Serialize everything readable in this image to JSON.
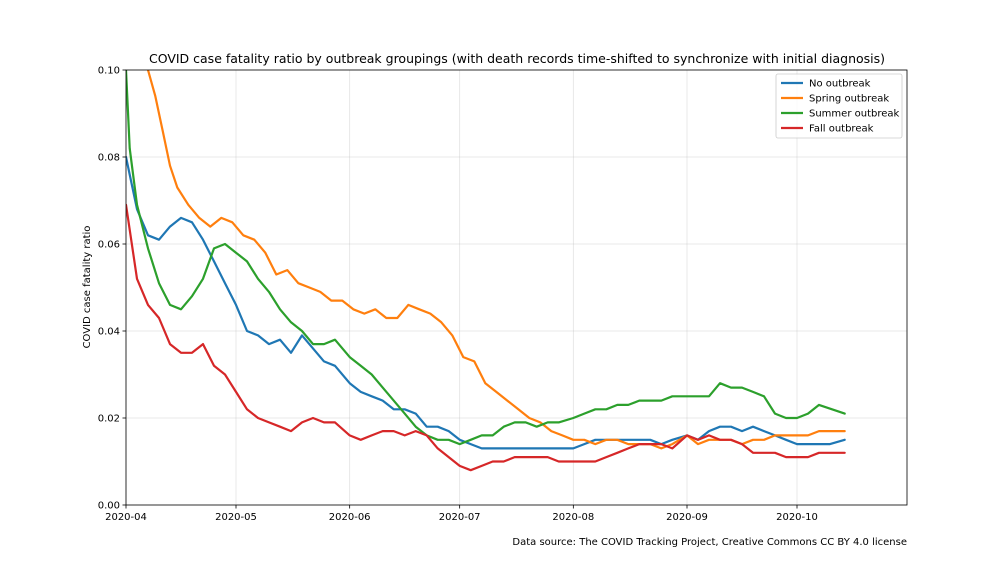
{
  "chart_data": {
    "type": "line",
    "title": "COVID case fatality ratio by outbreak groupings (with death records time-shifted to synchronize with initial diagnosis)",
    "xlabel": "",
    "ylabel": "COVID case fatality ratio",
    "xlim": [
      "2020-04-01",
      "2020-10-31"
    ],
    "ylim": [
      0.0,
      0.1
    ],
    "x_ticks": [
      "2020-04",
      "2020-05",
      "2020-06",
      "2020-07",
      "2020-08",
      "2020-09",
      "2020-10"
    ],
    "y_ticks": [
      "0.00",
      "0.02",
      "0.04",
      "0.06",
      "0.08",
      "0.10"
    ],
    "grid": true,
    "legend_position": "upper right",
    "series": [
      {
        "name": "No outbreak",
        "color": "#1f77b4",
        "x": [
          "2020-04-01",
          "2020-04-04",
          "2020-04-07",
          "2020-04-10",
          "2020-04-13",
          "2020-04-16",
          "2020-04-19",
          "2020-04-22",
          "2020-04-25",
          "2020-04-28",
          "2020-05-01",
          "2020-05-04",
          "2020-05-07",
          "2020-05-10",
          "2020-05-13",
          "2020-05-16",
          "2020-05-19",
          "2020-05-22",
          "2020-05-25",
          "2020-05-28",
          "2020-06-01",
          "2020-06-04",
          "2020-06-07",
          "2020-06-10",
          "2020-06-13",
          "2020-06-16",
          "2020-06-19",
          "2020-06-22",
          "2020-06-25",
          "2020-06-28",
          "2020-07-01",
          "2020-07-04",
          "2020-07-07",
          "2020-07-10",
          "2020-07-13",
          "2020-07-16",
          "2020-07-19",
          "2020-07-22",
          "2020-07-25",
          "2020-07-28",
          "2020-08-01",
          "2020-08-04",
          "2020-08-07",
          "2020-08-10",
          "2020-08-13",
          "2020-08-16",
          "2020-08-19",
          "2020-08-22",
          "2020-08-25",
          "2020-08-28",
          "2020-09-01",
          "2020-09-04",
          "2020-09-07",
          "2020-09-10",
          "2020-09-13",
          "2020-09-16",
          "2020-09-19",
          "2020-09-22",
          "2020-09-25",
          "2020-09-28",
          "2020-10-01",
          "2020-10-04",
          "2020-10-07",
          "2020-10-10",
          "2020-10-14"
        ],
        "y": [
          0.08,
          0.068,
          0.062,
          0.061,
          0.064,
          0.066,
          0.065,
          0.061,
          0.056,
          0.051,
          0.046,
          0.04,
          0.039,
          0.037,
          0.038,
          0.035,
          0.039,
          0.036,
          0.033,
          0.032,
          0.028,
          0.026,
          0.025,
          0.024,
          0.022,
          0.022,
          0.021,
          0.018,
          0.018,
          0.017,
          0.015,
          0.014,
          0.013,
          0.013,
          0.013,
          0.013,
          0.013,
          0.013,
          0.013,
          0.013,
          0.013,
          0.014,
          0.015,
          0.015,
          0.015,
          0.015,
          0.015,
          0.015,
          0.014,
          0.015,
          0.016,
          0.015,
          0.017,
          0.018,
          0.018,
          0.017,
          0.018,
          0.017,
          0.016,
          0.015,
          0.014,
          0.014,
          0.014,
          0.014,
          0.015
        ]
      },
      {
        "name": "Spring outbreak",
        "color": "#ff7f0e",
        "x": [
          "2020-04-07",
          "2020-04-09",
          "2020-04-11",
          "2020-04-13",
          "2020-04-15",
          "2020-04-18",
          "2020-04-21",
          "2020-04-24",
          "2020-04-27",
          "2020-04-30",
          "2020-05-03",
          "2020-05-06",
          "2020-05-09",
          "2020-05-12",
          "2020-05-15",
          "2020-05-18",
          "2020-05-21",
          "2020-05-24",
          "2020-05-27",
          "2020-05-30",
          "2020-06-02",
          "2020-06-05",
          "2020-06-08",
          "2020-06-11",
          "2020-06-14",
          "2020-06-17",
          "2020-06-20",
          "2020-06-23",
          "2020-06-26",
          "2020-06-29",
          "2020-07-02",
          "2020-07-05",
          "2020-07-08",
          "2020-07-11",
          "2020-07-14",
          "2020-07-17",
          "2020-07-20",
          "2020-07-23",
          "2020-07-26",
          "2020-07-29",
          "2020-08-01",
          "2020-08-04",
          "2020-08-07",
          "2020-08-10",
          "2020-08-13",
          "2020-08-16",
          "2020-08-19",
          "2020-08-22",
          "2020-08-25",
          "2020-08-28",
          "2020-09-01",
          "2020-09-04",
          "2020-09-07",
          "2020-09-10",
          "2020-09-13",
          "2020-09-16",
          "2020-09-19",
          "2020-09-22",
          "2020-09-25",
          "2020-09-28",
          "2020-10-01",
          "2020-10-04",
          "2020-10-07",
          "2020-10-10",
          "2020-10-14"
        ],
        "y": [
          0.1,
          0.094,
          0.086,
          0.078,
          0.073,
          0.069,
          0.066,
          0.064,
          0.066,
          0.065,
          0.062,
          0.061,
          0.058,
          0.053,
          0.054,
          0.051,
          0.05,
          0.049,
          0.047,
          0.047,
          0.045,
          0.044,
          0.045,
          0.043,
          0.043,
          0.046,
          0.045,
          0.044,
          0.042,
          0.039,
          0.034,
          0.033,
          0.028,
          0.026,
          0.024,
          0.022,
          0.02,
          0.019,
          0.017,
          0.016,
          0.015,
          0.015,
          0.014,
          0.015,
          0.015,
          0.014,
          0.014,
          0.014,
          0.013,
          0.014,
          0.016,
          0.014,
          0.015,
          0.015,
          0.015,
          0.014,
          0.015,
          0.015,
          0.016,
          0.016,
          0.016,
          0.016,
          0.017,
          0.017,
          0.017
        ]
      },
      {
        "name": "Summer outbreak",
        "color": "#2ca02c",
        "x": [
          "2020-04-01",
          "2020-04-02",
          "2020-04-04",
          "2020-04-07",
          "2020-04-10",
          "2020-04-13",
          "2020-04-16",
          "2020-04-19",
          "2020-04-22",
          "2020-04-25",
          "2020-04-28",
          "2020-05-01",
          "2020-05-04",
          "2020-05-07",
          "2020-05-10",
          "2020-05-13",
          "2020-05-16",
          "2020-05-19",
          "2020-05-22",
          "2020-05-25",
          "2020-05-28",
          "2020-06-01",
          "2020-06-04",
          "2020-06-07",
          "2020-06-10",
          "2020-06-13",
          "2020-06-16",
          "2020-06-19",
          "2020-06-22",
          "2020-06-25",
          "2020-06-28",
          "2020-07-01",
          "2020-07-04",
          "2020-07-07",
          "2020-07-10",
          "2020-07-13",
          "2020-07-16",
          "2020-07-19",
          "2020-07-22",
          "2020-07-25",
          "2020-07-28",
          "2020-08-01",
          "2020-08-04",
          "2020-08-07",
          "2020-08-10",
          "2020-08-13",
          "2020-08-16",
          "2020-08-19",
          "2020-08-22",
          "2020-08-25",
          "2020-08-28",
          "2020-09-01",
          "2020-09-04",
          "2020-09-07",
          "2020-09-10",
          "2020-09-13",
          "2020-09-16",
          "2020-09-19",
          "2020-09-22",
          "2020-09-25",
          "2020-09-28",
          "2020-10-01",
          "2020-10-04",
          "2020-10-07",
          "2020-10-14"
        ],
        "y": [
          0.1,
          0.082,
          0.069,
          0.059,
          0.051,
          0.046,
          0.045,
          0.048,
          0.052,
          0.059,
          0.06,
          0.058,
          0.056,
          0.052,
          0.049,
          0.045,
          0.042,
          0.04,
          0.037,
          0.037,
          0.038,
          0.034,
          0.032,
          0.03,
          0.027,
          0.024,
          0.021,
          0.018,
          0.016,
          0.015,
          0.015,
          0.014,
          0.015,
          0.016,
          0.016,
          0.018,
          0.019,
          0.019,
          0.018,
          0.019,
          0.019,
          0.02,
          0.021,
          0.022,
          0.022,
          0.023,
          0.023,
          0.024,
          0.024,
          0.024,
          0.025,
          0.025,
          0.025,
          0.025,
          0.028,
          0.027,
          0.027,
          0.026,
          0.025,
          0.021,
          0.02,
          0.02,
          0.021,
          0.023,
          0.021
        ]
      },
      {
        "name": "Fall outbreak",
        "color": "#d62728",
        "x": [
          "2020-04-01",
          "2020-04-04",
          "2020-04-07",
          "2020-04-10",
          "2020-04-13",
          "2020-04-16",
          "2020-04-19",
          "2020-04-22",
          "2020-04-25",
          "2020-04-28",
          "2020-05-01",
          "2020-05-04",
          "2020-05-07",
          "2020-05-10",
          "2020-05-13",
          "2020-05-16",
          "2020-05-19",
          "2020-05-22",
          "2020-05-25",
          "2020-05-28",
          "2020-06-01",
          "2020-06-04",
          "2020-06-07",
          "2020-06-10",
          "2020-06-13",
          "2020-06-16",
          "2020-06-19",
          "2020-06-22",
          "2020-06-25",
          "2020-06-28",
          "2020-07-01",
          "2020-07-04",
          "2020-07-07",
          "2020-07-10",
          "2020-07-13",
          "2020-07-16",
          "2020-07-19",
          "2020-07-22",
          "2020-07-25",
          "2020-07-28",
          "2020-08-01",
          "2020-08-04",
          "2020-08-07",
          "2020-08-10",
          "2020-08-13",
          "2020-08-16",
          "2020-08-19",
          "2020-08-22",
          "2020-08-25",
          "2020-08-28",
          "2020-09-01",
          "2020-09-04",
          "2020-09-07",
          "2020-09-10",
          "2020-09-13",
          "2020-09-16",
          "2020-09-19",
          "2020-09-22",
          "2020-09-25",
          "2020-09-28",
          "2020-10-01",
          "2020-10-04",
          "2020-10-07",
          "2020-10-10",
          "2020-10-14"
        ],
        "y": [
          0.069,
          0.052,
          0.046,
          0.043,
          0.037,
          0.035,
          0.035,
          0.037,
          0.032,
          0.03,
          0.026,
          0.022,
          0.02,
          0.019,
          0.018,
          0.017,
          0.019,
          0.02,
          0.019,
          0.019,
          0.016,
          0.015,
          0.016,
          0.017,
          0.017,
          0.016,
          0.017,
          0.016,
          0.013,
          0.011,
          0.009,
          0.008,
          0.009,
          0.01,
          0.01,
          0.011,
          0.011,
          0.011,
          0.011,
          0.01,
          0.01,
          0.01,
          0.01,
          0.011,
          0.012,
          0.013,
          0.014,
          0.014,
          0.014,
          0.013,
          0.016,
          0.015,
          0.016,
          0.015,
          0.015,
          0.014,
          0.012,
          0.012,
          0.012,
          0.011,
          0.011,
          0.011,
          0.012,
          0.012,
          0.012
        ]
      }
    ]
  },
  "footer": {
    "source": "Data source: The COVID Tracking Project, Creative Commons CC BY 4.0 license"
  }
}
